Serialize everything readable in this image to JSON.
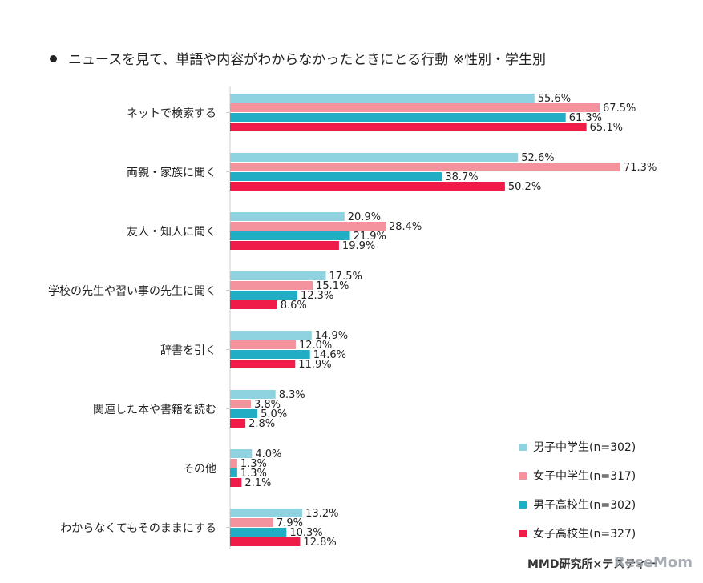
{
  "title": "ニュースを見て、単語や内容がわからなかったときにとる行動 ※性別・学生別",
  "credit": "MMD研究所×テスティー",
  "watermark": "ReseMom",
  "colors": {
    "boys_jhs": "#8ed3df",
    "girls_jhs": "#f4939d",
    "boys_hs": "#21adc4",
    "girls_hs": "#ef1c4a",
    "axis": "#cccccc"
  },
  "legend": [
    {
      "label": "男子中学生(n=302)",
      "color_key": "boys_jhs"
    },
    {
      "label": "女子中学生(n=317)",
      "color_key": "girls_jhs"
    },
    {
      "label": "男子高校生(n=302)",
      "color_key": "boys_hs"
    },
    {
      "label": "女子高校生(n=327)",
      "color_key": "girls_hs"
    }
  ],
  "chart_data": {
    "type": "bar",
    "orientation": "horizontal",
    "title": "ニュースを見て、単語や内容がわからなかったときにとる行動 ※性別・学生別",
    "unit": "%",
    "categories": [
      "ネットで検索する",
      "両親・家族に聞く",
      "友人・知人に聞く",
      "学校の先生や習い事の先生に聞く",
      "辞書を引く",
      "関連した本や書籍を読む",
      "その他",
      "わからなくてもそのままにする"
    ],
    "series": [
      {
        "name": "男子中学生(n=302)",
        "color_key": "boys_jhs",
        "values": [
          55.6,
          52.6,
          20.9,
          17.5,
          14.9,
          8.3,
          4.0,
          13.2
        ]
      },
      {
        "name": "女子中学生(n=317)",
        "color_key": "girls_jhs",
        "values": [
          67.5,
          71.3,
          28.4,
          15.1,
          12.0,
          3.8,
          1.3,
          7.9
        ]
      },
      {
        "name": "男子高校生(n=302)",
        "color_key": "boys_hs",
        "values": [
          61.3,
          38.7,
          21.9,
          12.3,
          14.6,
          5.0,
          1.3,
          10.3
        ]
      },
      {
        "name": "女子高校生(n=327)",
        "color_key": "girls_hs",
        "values": [
          65.1,
          50.2,
          19.9,
          8.6,
          11.9,
          2.8,
          2.1,
          12.8
        ]
      }
    ],
    "xlim": [
      0,
      71.3
    ],
    "grid": false,
    "legend_position": "bottom-right"
  }
}
